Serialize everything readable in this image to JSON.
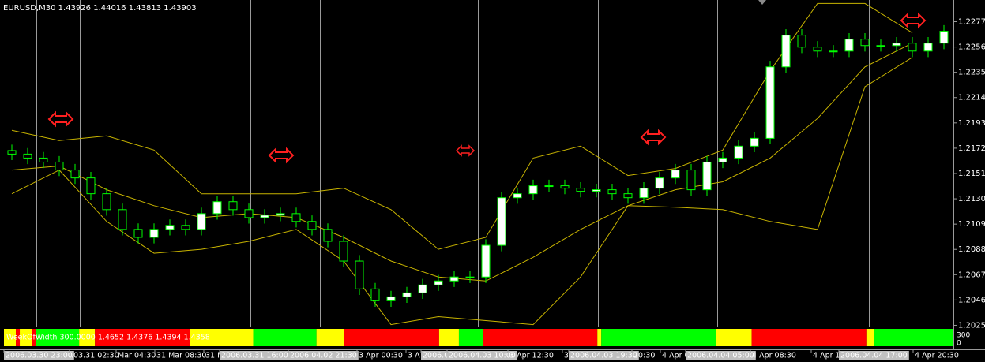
{
  "chart_data": {
    "type": "candlestick",
    "title": "EURUSD,M30  1.43926 1.44016 1.43813 1.43903",
    "up_color": "#ffffff",
    "down_color": "#000000",
    "wick_color": "#00ff00",
    "open": [
      1.217,
      1.21671,
      1.21638,
      1.21605,
      1.21539,
      1.21473,
      1.21342,
      1.2121,
      1.21046,
      1.2098,
      1.21046,
      1.21079,
      1.21046,
      1.21177,
      1.21276,
      1.2121,
      1.21144,
      1.21164,
      1.21177,
      1.21112,
      1.21046,
      1.20947,
      1.20783,
      1.20552,
      1.20454,
      1.20486,
      1.20519,
      1.20585,
      1.20618,
      1.20651,
      1.20651,
      1.20914,
      1.21309,
      1.21342,
      1.21408,
      1.21408,
      1.21388,
      1.21362,
      1.21375,
      1.21342,
      1.21309,
      1.21388,
      1.21473,
      1.21539,
      1.21375,
      1.21605,
      1.21638,
      1.21737,
      1.21802,
      1.22395,
      1.22658,
      1.22559,
      1.22526,
      1.22526,
      1.22625,
      1.22572,
      1.22572,
      1.22592,
      1.22526,
      1.22592
    ],
    "high": [
      1.2175,
      1.21721,
      1.21688,
      1.21655,
      1.21589,
      1.21523,
      1.21392,
      1.2126,
      1.21096,
      1.21096,
      1.21129,
      1.21129,
      1.21227,
      1.21326,
      1.21326,
      1.2126,
      1.21214,
      1.21227,
      1.21227,
      1.21162,
      1.21096,
      1.20997,
      1.20833,
      1.20602,
      1.20536,
      1.20569,
      1.20635,
      1.20668,
      1.20701,
      1.20701,
      1.20964,
      1.21359,
      1.21392,
      1.21458,
      1.21458,
      1.21458,
      1.21438,
      1.21425,
      1.21425,
      1.21392,
      1.21438,
      1.21523,
      1.21589,
      1.21589,
      1.21655,
      1.21688,
      1.21787,
      1.21852,
      1.22445,
      1.22708,
      1.22708,
      1.22609,
      1.22576,
      1.22675,
      1.22675,
      1.22622,
      1.22642,
      1.22642,
      1.22642,
      1.22741
    ],
    "low": [
      1.21621,
      1.21588,
      1.21555,
      1.21489,
      1.21423,
      1.21292,
      1.2116,
      1.20996,
      1.2093,
      1.2093,
      1.20996,
      1.20996,
      1.20996,
      1.21127,
      1.2116,
      1.21094,
      1.21094,
      1.21114,
      1.21062,
      1.20996,
      1.20897,
      1.20733,
      1.20502,
      1.20404,
      1.20404,
      1.20436,
      1.20469,
      1.20535,
      1.20568,
      1.20601,
      1.20601,
      1.20864,
      1.21259,
      1.21292,
      1.21358,
      1.21338,
      1.21312,
      1.21312,
      1.21292,
      1.21259,
      1.21259,
      1.21338,
      1.21423,
      1.21325,
      1.21325,
      1.21555,
      1.21588,
      1.21687,
      1.21752,
      1.22345,
      1.22509,
      1.22476,
      1.22476,
      1.22476,
      1.22522,
      1.22522,
      1.22522,
      1.22476,
      1.22476,
      1.22542
    ],
    "close": [
      1.21671,
      1.21638,
      1.21605,
      1.21539,
      1.21473,
      1.21342,
      1.2121,
      1.21046,
      1.2098,
      1.21046,
      1.21079,
      1.21046,
      1.21177,
      1.21276,
      1.2121,
      1.21144,
      1.21164,
      1.21177,
      1.21112,
      1.21046,
      1.20947,
      1.20783,
      1.20552,
      1.20454,
      1.20486,
      1.20519,
      1.20585,
      1.20618,
      1.20651,
      1.20651,
      1.20914,
      1.21309,
      1.21342,
      1.21408,
      1.21408,
      1.21388,
      1.21362,
      1.21375,
      1.21342,
      1.21309,
      1.21388,
      1.21473,
      1.21539,
      1.21375,
      1.21605,
      1.21638,
      1.21737,
      1.21802,
      1.22395,
      1.22658,
      1.22559,
      1.22526,
      1.22526,
      1.22625,
      1.22572,
      1.22572,
      1.22592,
      1.22526,
      1.22592,
      1.22691
    ],
    "bands": {
      "x": [
        0,
        3,
        6,
        9,
        12,
        15,
        18,
        21,
        24,
        27,
        30,
        33,
        36,
        39,
        42,
        45,
        48,
        51,
        54,
        57
      ],
      "color": "#c8b400",
      "series": [
        {
          "values": [
            1.21868,
            1.21783,
            1.21822,
            1.21704,
            1.21342,
            1.21342,
            1.21342,
            1.21388,
            1.2121,
            1.20881,
            1.2098,
            1.21638,
            1.21737,
            1.21493,
            1.21552,
            1.21704,
            1.22362,
            1.22921,
            1.22921,
            1.22678
          ]
        },
        {
          "values": [
            1.21539,
            1.21572,
            1.21375,
            1.21243,
            1.21144,
            1.21177,
            1.21144,
            1.2098,
            1.20783,
            1.20651,
            1.20618,
            1.20815,
            1.21046,
            1.21243,
            1.21375,
            1.21441,
            1.21638,
            1.21967,
            1.22395,
            1.22592
          ]
        },
        {
          "values": [
            1.21342,
            1.21539,
            1.21112,
            1.20848,
            1.20881,
            1.20947,
            1.21046,
            1.20783,
            1.20256,
            1.20322,
            1.20289,
            1.20256,
            1.20651,
            1.21243,
            1.2123,
            1.2121,
            1.21112,
            1.21046,
            1.2223,
            1.22474
          ]
        }
      ]
    },
    "ylim": [
      1.2024,
      1.2295
    ],
    "yticks": [
      {
        "value": 1.2277,
        "label": "1.22770"
      },
      {
        "value": 1.2256,
        "label": "1.22560"
      },
      {
        "value": 1.2235,
        "label": "1.22350"
      },
      {
        "value": 1.2214,
        "label": "1.22140"
      },
      {
        "value": 1.2193,
        "label": "1.21930"
      },
      {
        "value": 1.2172,
        "label": "1.21720"
      },
      {
        "value": 1.2151,
        "label": "1.21510"
      },
      {
        "value": 1.213,
        "label": "1.21300"
      },
      {
        "value": 1.2109,
        "label": "1.21090"
      },
      {
        "value": 1.2088,
        "label": "1.20880"
      },
      {
        "value": 1.2067,
        "label": "1.20670"
      },
      {
        "value": 1.2046,
        "label": "1.20460"
      },
      {
        "value": 1.2025,
        "label": "1.20250"
      }
    ],
    "time_labels": [
      "2006.03.30 23:00",
      ".03.31 02:30",
      "Mar 04:30",
      "31 Mar 08:30",
      "31 M",
      "2006.03.31 16:00",
      "2006.04.02 21:30",
      "3 Apr 00:30",
      "3 A",
      "2006.0",
      "2006.04.03 10:00",
      "3 Apr 12:30",
      "3",
      "2006.04.03 19:30",
      "20:30",
      "4 Apr 0",
      "2006.04.04 05:00",
      "4 Apr 08:30",
      "4 Apr 1",
      "2006.04.04 17:00",
      "4 Apr 20:30"
    ],
    "indicator": {
      "label": "WeekOfWidth 300.0000 1.4652 1.4376 1.4394 1.4358",
      "axis_labels": [
        "300",
        "0"
      ],
      "segments": [
        {
          "color": "#ffff00",
          "count": 3
        },
        {
          "color": "#ff0000",
          "count": 1
        },
        {
          "color": "#ffff00",
          "count": 3
        },
        {
          "color": "#ff0000",
          "count": 1
        },
        {
          "color": "#00ff00",
          "count": 11
        },
        {
          "color": "#ffff00",
          "count": 4
        },
        {
          "color": "#ff0000",
          "count": 24
        },
        {
          "color": "#ffff00",
          "count": 16
        },
        {
          "color": "#00ff00",
          "count": 16
        },
        {
          "color": "#ffff00",
          "count": 7
        },
        {
          "color": "#ff0000",
          "count": 24
        },
        {
          "color": "#ffff00",
          "count": 5
        },
        {
          "color": "#00ff00",
          "count": 6
        },
        {
          "color": "#ff0000",
          "count": 29
        },
        {
          "color": "#ffff00",
          "count": 1
        },
        {
          "color": "#00ff00",
          "count": 29
        },
        {
          "color": "#ffff00",
          "count": 9
        },
        {
          "color": "#ff0000",
          "count": 29
        },
        {
          "color": "#ffff00",
          "count": 2
        },
        {
          "color": "#00ff00",
          "count": 20
        }
      ]
    }
  }
}
